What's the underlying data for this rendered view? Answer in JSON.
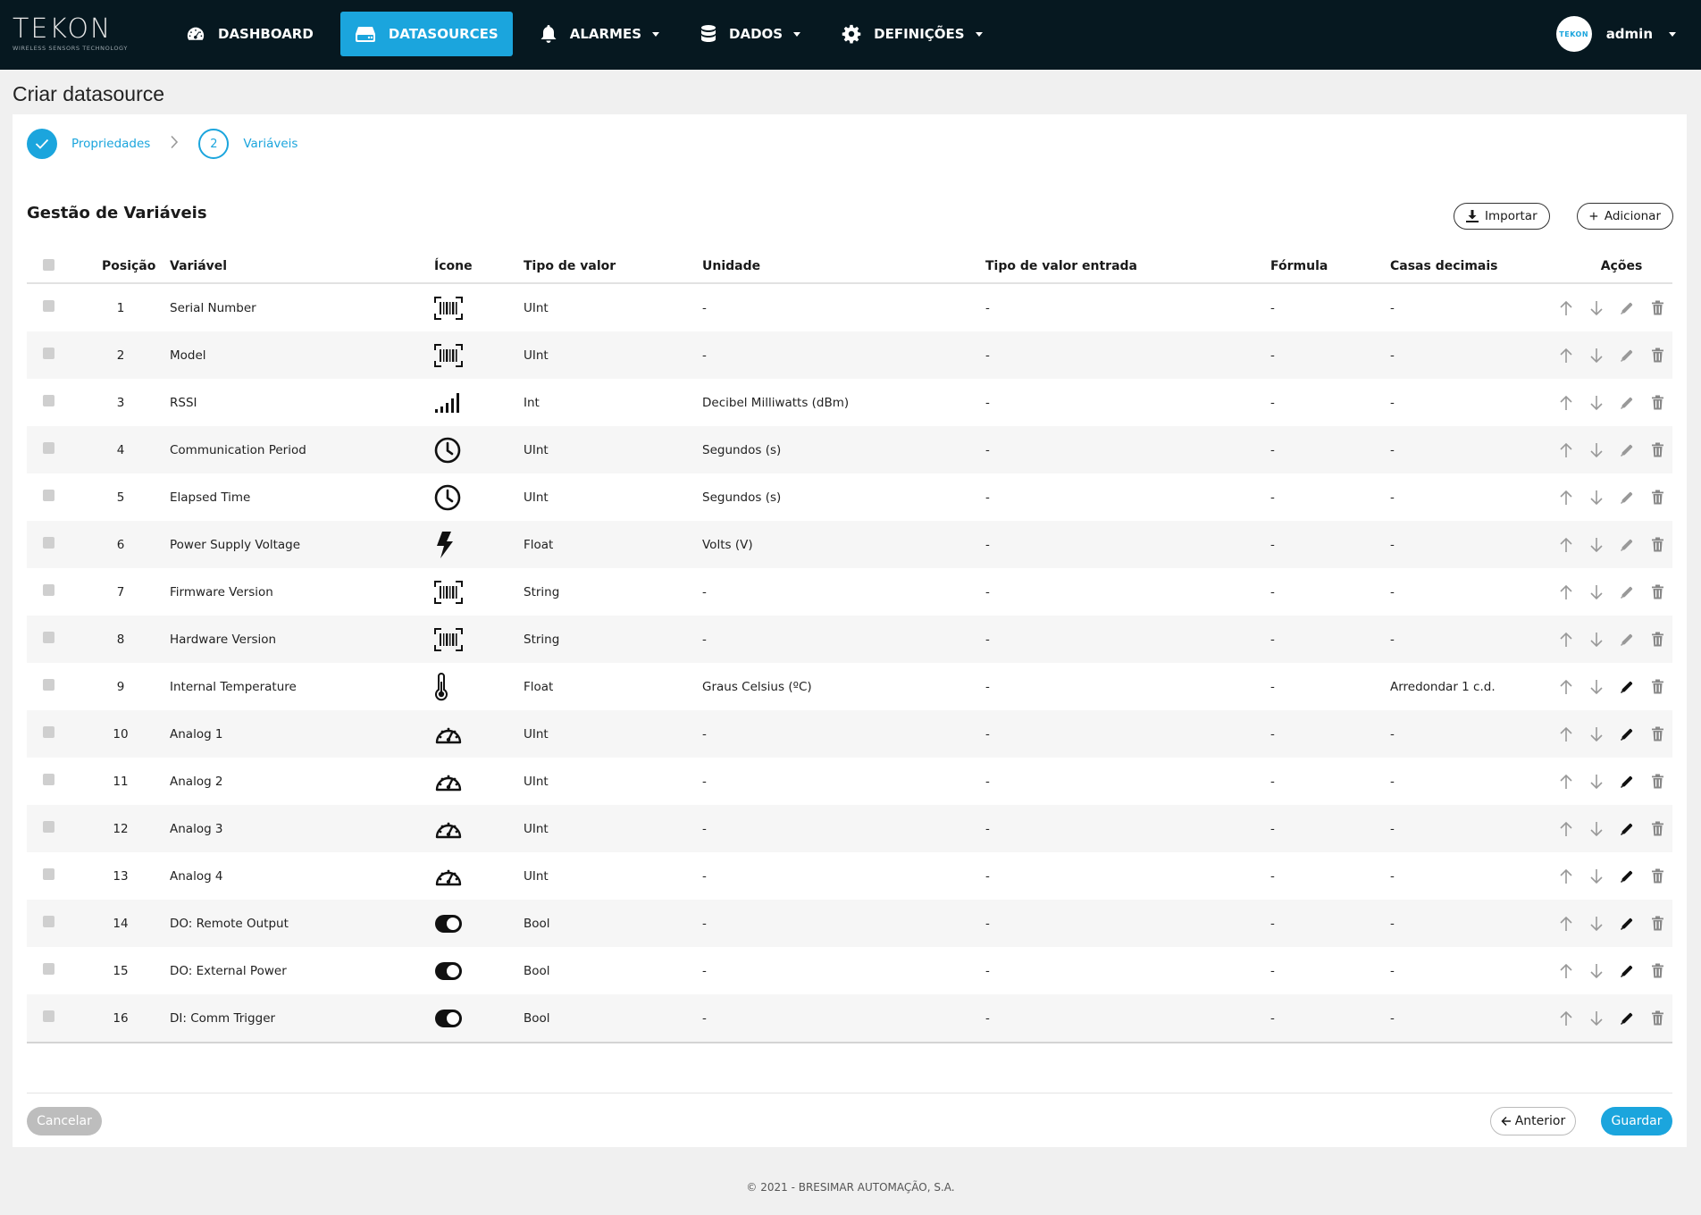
{
  "nav": {
    "logo_text": "TEKON",
    "logo_sub": "WIRELESS SENSORS TECHNOLOGY",
    "items": [
      {
        "label": "DASHBOARD",
        "icon": "speedometer-icon"
      },
      {
        "label": "DATASOURCES",
        "icon": "server-icon",
        "active": true
      },
      {
        "label": "ALARMES",
        "icon": "bell-icon",
        "dropdown": true
      },
      {
        "label": "DADOS",
        "icon": "database-icon",
        "dropdown": true
      },
      {
        "label": "DEFINIÇÕES",
        "icon": "gear-icon",
        "dropdown": true
      }
    ],
    "user": "admin",
    "avatar_text": "TEKON"
  },
  "page": {
    "title": "Criar datasource"
  },
  "stepper": {
    "steps": [
      {
        "number": "1",
        "label": "Propriedades",
        "state": "done"
      },
      {
        "number": "2",
        "label": "Variáveis",
        "state": "current"
      }
    ]
  },
  "section": {
    "title": "Gestão de Variáveis",
    "import_label": "Importar",
    "add_label": "Adicionar"
  },
  "table": {
    "headers": {
      "posicao": "Posição",
      "variavel": "Variável",
      "icone": "Ícone",
      "tipo": "Tipo de valor",
      "unidade": "Unidade",
      "tipo_entrada": "Tipo de valor entrada",
      "formula": "Fórmula",
      "casas": "Casas decimais",
      "acoes": "Ações"
    },
    "rows": [
      {
        "pos": "1",
        "var": "Serial Number",
        "icon": "barcode-icon",
        "tipo": "UInt",
        "unidade": "-",
        "entrada": "-",
        "formula": "-",
        "casas": "-",
        "editable": false
      },
      {
        "pos": "2",
        "var": "Model",
        "icon": "barcode-icon",
        "tipo": "UInt",
        "unidade": "-",
        "entrada": "-",
        "formula": "-",
        "casas": "-",
        "editable": false
      },
      {
        "pos": "3",
        "var": "RSSI",
        "icon": "signal-icon",
        "tipo": "Int",
        "unidade": "Decibel Milliwatts (dBm)",
        "entrada": "-",
        "formula": "-",
        "casas": "-",
        "editable": false
      },
      {
        "pos": "4",
        "var": "Communication Period",
        "icon": "clock-icon",
        "tipo": "UInt",
        "unidade": "Segundos (s)",
        "entrada": "-",
        "formula": "-",
        "casas": "-",
        "editable": false
      },
      {
        "pos": "5",
        "var": "Elapsed Time",
        "icon": "clock-icon",
        "tipo": "UInt",
        "unidade": "Segundos (s)",
        "entrada": "-",
        "formula": "-",
        "casas": "-",
        "editable": false
      },
      {
        "pos": "6",
        "var": "Power Supply Voltage",
        "icon": "lightning-icon",
        "tipo": "Float",
        "unidade": "Volts (V)",
        "entrada": "-",
        "formula": "-",
        "casas": "-",
        "editable": false
      },
      {
        "pos": "7",
        "var": "Firmware Version",
        "icon": "barcode-icon",
        "tipo": "String",
        "unidade": "-",
        "entrada": "-",
        "formula": "-",
        "casas": "-",
        "editable": false
      },
      {
        "pos": "8",
        "var": "Hardware Version",
        "icon": "barcode-icon",
        "tipo": "String",
        "unidade": "-",
        "entrada": "-",
        "formula": "-",
        "casas": "-",
        "editable": false
      },
      {
        "pos": "9",
        "var": "Internal Temperature",
        "icon": "thermometer-icon",
        "tipo": "Float",
        "unidade": "Graus Celsius (ºC)",
        "entrada": "-",
        "formula": "-",
        "casas": "Arredondar 1 c.d.",
        "editable": true
      },
      {
        "pos": "10",
        "var": "Analog 1",
        "icon": "gauge-icon",
        "tipo": "UInt",
        "unidade": "-",
        "entrada": "-",
        "formula": "-",
        "casas": "-",
        "editable": true
      },
      {
        "pos": "11",
        "var": "Analog 2",
        "icon": "gauge-icon",
        "tipo": "UInt",
        "unidade": "-",
        "entrada": "-",
        "formula": "-",
        "casas": "-",
        "editable": true
      },
      {
        "pos": "12",
        "var": "Analog 3",
        "icon": "gauge-icon",
        "tipo": "UInt",
        "unidade": "-",
        "entrada": "-",
        "formula": "-",
        "casas": "-",
        "editable": true
      },
      {
        "pos": "13",
        "var": "Analog 4",
        "icon": "gauge-icon",
        "tipo": "UInt",
        "unidade": "-",
        "entrada": "-",
        "formula": "-",
        "casas": "-",
        "editable": true
      },
      {
        "pos": "14",
        "var": "DO: Remote Output",
        "icon": "toggle-icon",
        "tipo": "Bool",
        "unidade": "-",
        "entrada": "-",
        "formula": "-",
        "casas": "-",
        "editable": true
      },
      {
        "pos": "15",
        "var": "DO: External Power",
        "icon": "toggle-icon",
        "tipo": "Bool",
        "unidade": "-",
        "entrada": "-",
        "formula": "-",
        "casas": "-",
        "editable": true
      },
      {
        "pos": "16",
        "var": "DI: Comm Trigger",
        "icon": "toggle-icon",
        "tipo": "Bool",
        "unidade": "-",
        "entrada": "-",
        "formula": "-",
        "casas": "-",
        "editable": true
      }
    ]
  },
  "footer_buttons": {
    "cancel": "Cancelar",
    "previous": "Anterior",
    "save": "Guardar"
  },
  "footer": "© 2021 - BRESIMAR AUTOMAÇÃO, S.A.",
  "colors": {
    "accent": "#1ba5dd",
    "topbar": "#061820",
    "background": "#f0f0f0"
  }
}
